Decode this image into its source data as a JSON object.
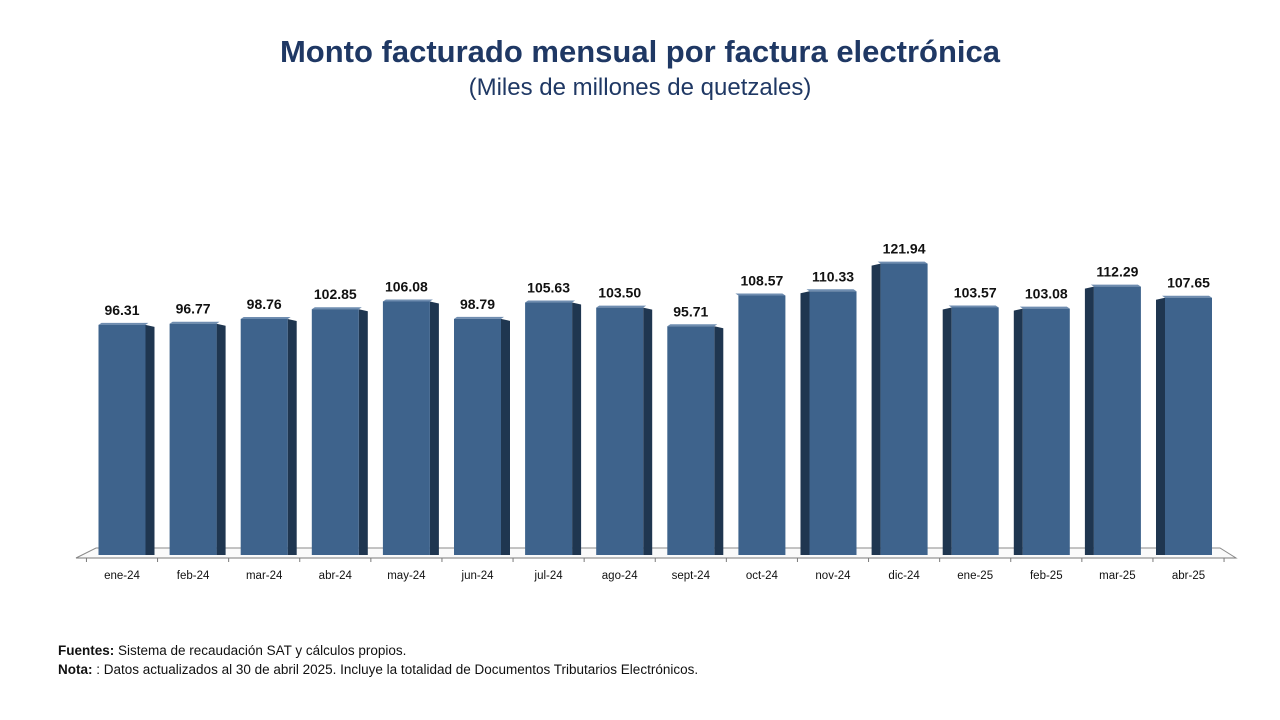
{
  "title": "Monto facturado mensual por factura electrónica",
  "subtitle": "(Miles de millones de quetzales)",
  "notes": {
    "sources_label": "Fuentes:",
    "sources_text": " Sistema de recaudación SAT y cálculos propios.",
    "note_label": "Nota:",
    "note_text": " : Datos actualizados al 30 de abril 2025.  Incluye la totalidad de Documentos Tributarios Electrónicos."
  },
  "colors": {
    "bar_front": "#3e638c",
    "bar_side": "#1f3650",
    "title": "#1f3864"
  },
  "chart_data": {
    "type": "bar",
    "title": "Monto facturado mensual por factura electrónica",
    "subtitle": "(Miles de millones de quetzales)",
    "xlabel": "",
    "ylabel": "",
    "grid": false,
    "legend": "none",
    "ylim": [
      0,
      130
    ],
    "categories": [
      "ene-24",
      "feb-24",
      "mar-24",
      "abr-24",
      "may-24",
      "jun-24",
      "jul-24",
      "ago-24",
      "sept-24",
      "oct-24",
      "nov-24",
      "dic-24",
      "ene-25",
      "feb-25",
      "mar-25",
      "abr-25"
    ],
    "values": [
      96.31,
      96.77,
      98.76,
      102.85,
      106.08,
      98.79,
      105.63,
      103.5,
      95.71,
      108.57,
      110.33,
      121.94,
      103.57,
      103.08,
      112.29,
      107.65
    ],
    "value_labels": [
      "96.31",
      "96.77",
      "98.76",
      "102.85",
      "106.08",
      "98.79",
      "105.63",
      "103.50",
      "95.71",
      "108.57",
      "110.33",
      "121.94",
      "103.57",
      "103.08",
      "112.29",
      "107.65"
    ]
  }
}
